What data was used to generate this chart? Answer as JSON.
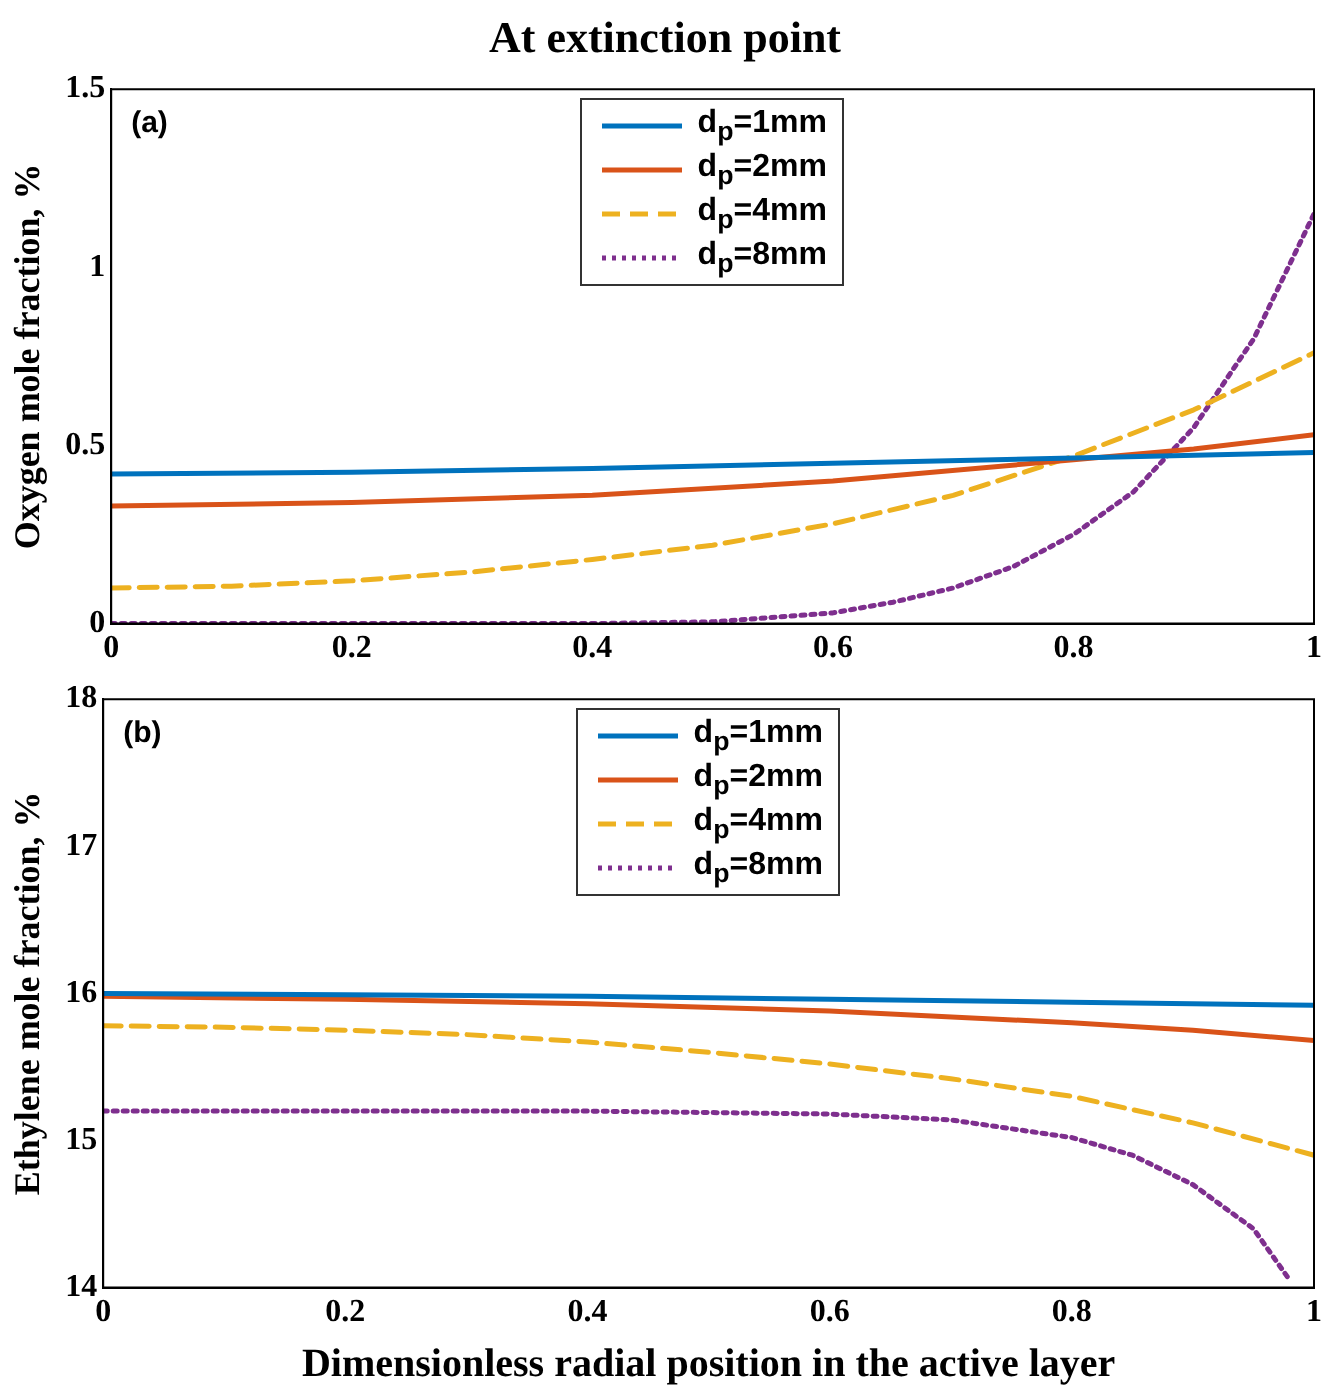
{
  "chart_data": [
    {
      "type": "line",
      "title": "At extinction point",
      "ylabel": "Oxygen mole fraction, %",
      "annotations": [
        "(a)"
      ],
      "xlim": [
        0,
        1
      ],
      "xticks": [
        0,
        0.2,
        0.4,
        0.6,
        0.8,
        1
      ],
      "ylim": [
        0,
        1.5
      ],
      "yticks": [
        0,
        0.5,
        1,
        1.5
      ],
      "grid": false,
      "legend": "top",
      "marker": "none",
      "series": [
        {
          "name": "d$_{p}$=1mm",
          "color": "#0072bd",
          "line_style": "solid",
          "x": [
            0,
            0.2,
            0.4,
            0.6,
            0.8,
            1
          ],
          "values": [
            0.42,
            0.425,
            0.435,
            0.45,
            0.465,
            0.48
          ]
        },
        {
          "name": "d$_{p}$=2mm",
          "color": "#d95319",
          "line_style": "solid",
          "x": [
            0,
            0.2,
            0.4,
            0.6,
            0.8,
            0.9,
            1
          ],
          "values": [
            0.33,
            0.34,
            0.36,
            0.4,
            0.46,
            0.49,
            0.53
          ]
        },
        {
          "name": "d$_{p}$=4mm",
          "color": "#edb120",
          "line_style": "dashed",
          "x": [
            0,
            0.1,
            0.2,
            0.3,
            0.4,
            0.5,
            0.6,
            0.7,
            0.8,
            0.9,
            1
          ],
          "values": [
            0.1,
            0.105,
            0.12,
            0.145,
            0.18,
            0.22,
            0.28,
            0.36,
            0.47,
            0.6,
            0.76
          ]
        },
        {
          "name": "d$_{p}$=8mm",
          "color": "#7e2f8e",
          "line_style": "dotted",
          "x": [
            0,
            0.2,
            0.4,
            0.5,
            0.6,
            0.65,
            0.7,
            0.75,
            0.8,
            0.85,
            0.9,
            0.95,
            1
          ],
          "values": [
            0,
            0,
            0,
            0.005,
            0.03,
            0.06,
            0.1,
            0.16,
            0.25,
            0.37,
            0.55,
            0.8,
            1.15
          ]
        }
      ]
    },
    {
      "type": "line",
      "xlabel": "Dimensionless radial position in the active layer",
      "ylabel": "Ethylene mole fraction, %",
      "annotations": [
        "(b)"
      ],
      "xlim": [
        0,
        1
      ],
      "xticks": [
        0,
        0.2,
        0.4,
        0.6,
        0.8,
        1
      ],
      "ylim": [
        14,
        18
      ],
      "yticks": [
        14,
        15,
        16,
        17,
        18
      ],
      "grid": false,
      "legend": "top",
      "marker": "none",
      "series": [
        {
          "name": "d$_{p}$=1mm",
          "color": "#0072bd",
          "line_style": "solid",
          "x": [
            0,
            0.2,
            0.4,
            0.6,
            0.8,
            1
          ],
          "values": [
            16.0,
            15.99,
            15.98,
            15.96,
            15.94,
            15.92
          ]
        },
        {
          "name": "d$_{p}$=2mm",
          "color": "#d95319",
          "line_style": "solid",
          "x": [
            0,
            0.2,
            0.4,
            0.6,
            0.8,
            0.9,
            1
          ],
          "values": [
            15.98,
            15.96,
            15.93,
            15.88,
            15.8,
            15.75,
            15.68
          ]
        },
        {
          "name": "d$_{p}$=4mm",
          "color": "#edb120",
          "line_style": "dashed",
          "x": [
            0,
            0.1,
            0.2,
            0.3,
            0.4,
            0.5,
            0.6,
            0.7,
            0.8,
            0.9,
            1
          ],
          "values": [
            15.78,
            15.77,
            15.75,
            15.72,
            15.67,
            15.6,
            15.52,
            15.42,
            15.3,
            15.12,
            14.9
          ]
        },
        {
          "name": "d$_{p}$=8mm",
          "color": "#7e2f8e",
          "line_style": "dotted",
          "x": [
            0,
            0.2,
            0.4,
            0.6,
            0.7,
            0.8,
            0.85,
            0.9,
            0.95,
            0.98
          ],
          "values": [
            15.2,
            15.2,
            15.2,
            15.18,
            15.14,
            15.02,
            14.9,
            14.7,
            14.4,
            14.05
          ]
        }
      ]
    }
  ]
}
